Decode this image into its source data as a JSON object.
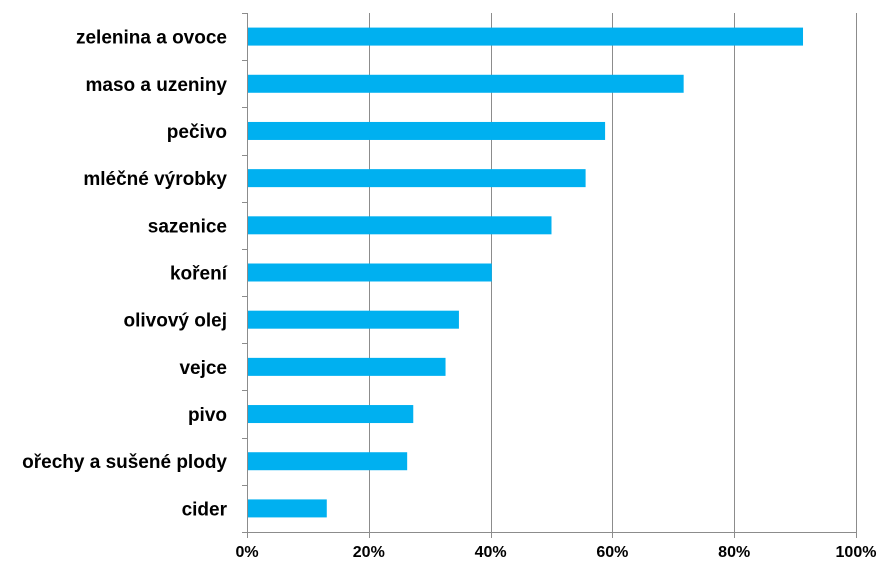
{
  "chart_data": {
    "type": "bar",
    "orientation": "horizontal",
    "title": "",
    "xlabel": "",
    "ylabel": "",
    "categories": [
      "zelenina a ovoce",
      "maso a uzeniny",
      "pečivo",
      "mléčné výrobky",
      "sazenice",
      "koření",
      "olivový olej",
      "vejce",
      "pivo",
      "ořechy a sušené plody",
      "cider"
    ],
    "values": [
      91.3,
      71.7,
      58.8,
      55.6,
      50.0,
      40.2,
      34.8,
      32.6,
      27.3,
      26.3,
      13.1
    ],
    "xlim": [
      0,
      100
    ],
    "x_ticks": [
      "0%",
      "20%",
      "40%",
      "60%",
      "80%",
      "100%"
    ],
    "x_tick_values": [
      0,
      20,
      40,
      60,
      80,
      100
    ],
    "grid": true,
    "legend": "none",
    "bar_color": "#00B0F0"
  }
}
